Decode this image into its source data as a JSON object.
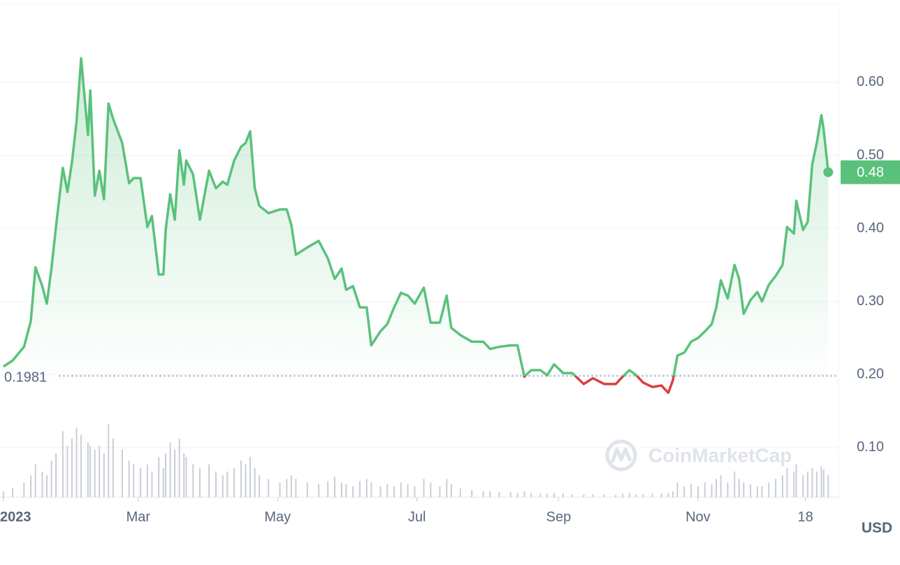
{
  "chart_data": {
    "type": "line",
    "x": [
      0,
      4,
      9,
      12,
      14,
      17,
      19,
      21,
      23,
      26,
      28,
      30,
      32,
      34,
      37,
      38,
      40,
      42,
      44,
      46,
      48,
      52,
      55,
      57,
      60,
      63,
      65,
      68,
      70,
      71,
      73,
      75,
      77,
      79,
      80,
      83,
      86,
      90,
      93,
      96,
      98,
      101,
      104,
      106,
      108,
      110,
      112,
      116,
      121,
      124,
      126,
      128,
      133,
      138,
      142,
      145,
      148,
      150,
      153,
      156,
      159,
      161,
      165,
      168,
      171,
      174,
      177,
      180,
      184,
      187,
      191,
      194,
      196,
      200,
      205,
      210,
      213,
      217,
      222,
      225,
      228,
      231,
      235,
      238,
      241,
      245,
      249,
      254,
      258,
      263,
      268,
      271,
      274,
      277,
      280,
      284,
      288,
      291,
      293,
      295,
      298,
      301,
      304,
      307,
      310,
      312,
      314,
      317,
      320,
      322,
      324,
      327,
      330,
      332,
      335,
      338,
      341,
      343,
      346,
      347,
      350,
      352,
      354,
      356,
      358,
      359,
      361
    ],
    "values": [
      0.211,
      0.219,
      0.238,
      0.273,
      0.347,
      0.321,
      0.297,
      0.345,
      0.402,
      0.483,
      0.45,
      0.491,
      0.546,
      0.633,
      0.528,
      0.589,
      0.445,
      0.479,
      0.44,
      0.571,
      0.55,
      0.517,
      0.462,
      0.469,
      0.469,
      0.402,
      0.417,
      0.337,
      0.337,
      0.398,
      0.447,
      0.412,
      0.507,
      0.46,
      0.493,
      0.474,
      0.412,
      0.479,
      0.455,
      0.464,
      0.46,
      0.493,
      0.512,
      0.517,
      0.533,
      0.455,
      0.431,
      0.421,
      0.426,
      0.426,
      0.405,
      0.364,
      0.374,
      0.383,
      0.359,
      0.331,
      0.345,
      0.316,
      0.321,
      0.292,
      0.292,
      0.24,
      0.259,
      0.269,
      0.292,
      0.312,
      0.308,
      0.297,
      0.319,
      0.271,
      0.271,
      0.308,
      0.264,
      0.254,
      0.245,
      0.245,
      0.235,
      0.238,
      0.24,
      0.24,
      0.197,
      0.206,
      0.206,
      0.199,
      0.214,
      0.202,
      0.202,
      0.187,
      0.195,
      0.187,
      0.187,
      0.197,
      0.206,
      0.199,
      0.189,
      0.183,
      0.185,
      0.175,
      0.192,
      0.226,
      0.23,
      0.245,
      0.25,
      0.259,
      0.269,
      0.292,
      0.329,
      0.304,
      0.35,
      0.331,
      0.283,
      0.302,
      0.313,
      0.3,
      0.323,
      0.335,
      0.35,
      0.402,
      0.393,
      0.438,
      0.398,
      0.409,
      0.488,
      0.517,
      0.555,
      0.536,
      0.477
    ],
    "volume": [
      8,
      12,
      20,
      30,
      45,
      35,
      30,
      50,
      60,
      90,
      70,
      80,
      95,
      85,
      75,
      70,
      65,
      70,
      60,
      100,
      80,
      65,
      50,
      45,
      40,
      45,
      35,
      55,
      40,
      60,
      75,
      65,
      80,
      60,
      55,
      45,
      40,
      45,
      35,
      30,
      35,
      40,
      50,
      45,
      55,
      40,
      30,
      25,
      20,
      25,
      30,
      25,
      20,
      18,
      22,
      28,
      20,
      18,
      15,
      22,
      25,
      20,
      15,
      18,
      15,
      20,
      18,
      15,
      25,
      20,
      15,
      25,
      18,
      12,
      10,
      8,
      8,
      7,
      7,
      6,
      8,
      6,
      5,
      5,
      6,
      5,
      4,
      4,
      4,
      4,
      3,
      5,
      6,
      4,
      4,
      5,
      5,
      6,
      8,
      20,
      15,
      18,
      15,
      20,
      18,
      25,
      30,
      20,
      35,
      25,
      20,
      18,
      15,
      15,
      20,
      25,
      30,
      40,
      35,
      45,
      30,
      35,
      40,
      35,
      42,
      38,
      30
    ],
    "color_up": "#5ac17c",
    "color_down": "#d94040",
    "volume_color": "#c9ced6",
    "baseline": 0.1981,
    "current_price_label": "0.48",
    "xlim": [
      -1.5,
      365.5
    ],
    "xticks": [
      {
        "value": 0,
        "label": "2023"
      },
      {
        "value": 59,
        "label": "Mar"
      },
      {
        "value": 120,
        "label": "May"
      },
      {
        "value": 181,
        "label": "Jul"
      },
      {
        "value": 243,
        "label": "Sep"
      },
      {
        "value": 304,
        "label": "Nov"
      },
      {
        "value": 351,
        "label": "18"
      }
    ],
    "ylim": [
      0.032,
      0.708
    ],
    "yticks": [
      {
        "value": 0.1,
        "label": "0.10"
      },
      {
        "value": 0.2,
        "label": "0.20"
      },
      {
        "value": 0.3,
        "label": "0.30"
      },
      {
        "value": 0.4,
        "label": "0.40"
      },
      {
        "value": 0.5,
        "label": "0.50"
      },
      {
        "value": 0.6,
        "label": "0.60"
      }
    ],
    "grid": true,
    "currency": "USD",
    "watermark": "CoinMarketCap"
  }
}
